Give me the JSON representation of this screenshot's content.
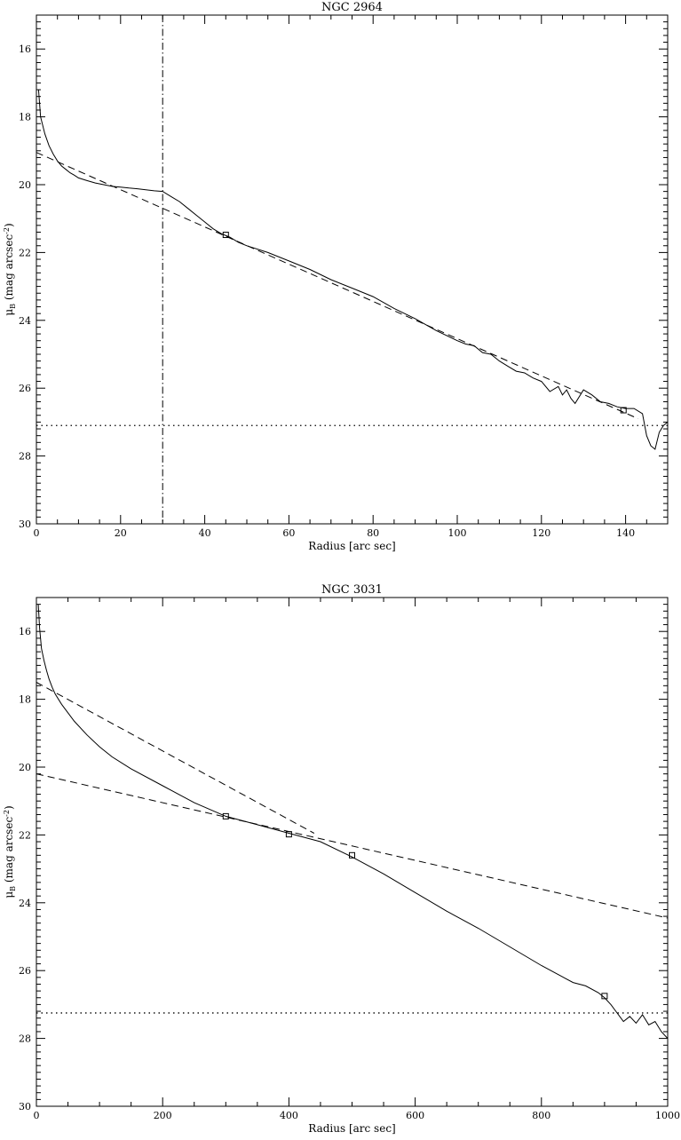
{
  "chart_data": [
    {
      "type": "line",
      "title": "NGC 2964",
      "xlabel": "Radius [arc sec]",
      "ylabel": "μ",
      "ylabel_sub": "B",
      "ylabel_rest": " (mag arcsec",
      "ylabel_sup": "-2",
      "ylabel_close": ")",
      "xlim": [
        0,
        150
      ],
      "ylim": [
        30,
        15
      ],
      "y_inverted": true,
      "xticks": [
        0,
        20,
        40,
        60,
        80,
        100,
        120,
        140
      ],
      "yticks": [
        16,
        18,
        20,
        22,
        24,
        26,
        28,
        30
      ],
      "grid": false,
      "series": [
        {
          "style": "solid",
          "x": [
            0.5,
            1,
            2,
            3,
            4,
            5,
            6,
            7,
            8,
            9,
            10,
            12,
            14,
            16,
            18,
            20,
            22,
            24,
            26,
            28,
            30,
            32,
            34,
            36,
            38,
            40,
            42,
            44,
            46,
            48,
            50,
            55,
            60,
            65,
            70,
            75,
            80,
            85,
            90,
            95,
            100,
            102,
            104,
            106,
            108,
            110,
            112,
            114,
            116,
            118,
            120,
            122,
            124,
            125,
            126,
            127,
            128,
            130,
            132,
            134,
            136,
            138,
            140,
            142,
            144,
            145,
            146,
            147,
            148,
            149,
            150
          ],
          "y": [
            17.2,
            18.0,
            18.5,
            18.85,
            19.1,
            19.3,
            19.45,
            19.55,
            19.65,
            19.72,
            19.8,
            19.88,
            19.95,
            20.0,
            20.05,
            20.07,
            20.1,
            20.12,
            20.15,
            20.18,
            20.2,
            20.35,
            20.5,
            20.7,
            20.9,
            21.1,
            21.3,
            21.45,
            21.55,
            21.7,
            21.8,
            22.0,
            22.25,
            22.5,
            22.8,
            23.05,
            23.3,
            23.65,
            23.95,
            24.3,
            24.6,
            24.7,
            24.75,
            24.95,
            25.0,
            25.2,
            25.35,
            25.5,
            25.55,
            25.7,
            25.8,
            26.1,
            25.95,
            26.2,
            26.05,
            26.3,
            26.45,
            26.05,
            26.2,
            26.4,
            26.45,
            26.55,
            26.6,
            26.6,
            26.75,
            27.4,
            27.7,
            27.8,
            27.3,
            27.1,
            27.0
          ]
        },
        {
          "style": "dashed",
          "x": [
            0,
            143
          ],
          "y": [
            19.05,
            26.9
          ]
        }
      ],
      "markers": [
        {
          "x": 45,
          "y": 21.48
        },
        {
          "x": 139.5,
          "y": 26.65
        }
      ],
      "hlines": [
        {
          "y": 27.1,
          "style": "dotted"
        }
      ],
      "vlines": [
        {
          "x": 30,
          "style": "dashdot"
        }
      ]
    },
    {
      "type": "line",
      "title": "NGC 3031",
      "xlabel": "Radius [arc sec]",
      "ylabel": "μ",
      "ylabel_sub": "B",
      "ylabel_rest": " (mag arcsec",
      "ylabel_sup": "-2",
      "ylabel_close": ")",
      "xlim": [
        0,
        1000
      ],
      "ylim": [
        30,
        15
      ],
      "y_inverted": true,
      "xticks": [
        0,
        200,
        400,
        600,
        800,
        1000
      ],
      "yticks": [
        16,
        18,
        20,
        22,
        24,
        26,
        28,
        30
      ],
      "grid": false,
      "series": [
        {
          "style": "solid",
          "x": [
            3,
            5,
            8,
            12,
            16,
            20,
            25,
            30,
            40,
            50,
            60,
            80,
            100,
            120,
            150,
            200,
            250,
            300,
            350,
            400,
            450,
            500,
            550,
            600,
            650,
            700,
            750,
            800,
            850,
            870,
            890,
            900,
            910,
            920,
            930,
            940,
            950,
            960,
            970,
            980,
            990,
            1000
          ],
          "y": [
            15.2,
            15.9,
            16.5,
            16.85,
            17.15,
            17.4,
            17.65,
            17.85,
            18.15,
            18.4,
            18.65,
            19.05,
            19.4,
            19.7,
            20.05,
            20.55,
            21.05,
            21.45,
            21.7,
            21.95,
            22.2,
            22.65,
            23.15,
            23.7,
            24.25,
            24.75,
            25.3,
            25.85,
            26.35,
            26.45,
            26.65,
            26.8,
            27.0,
            27.25,
            27.5,
            27.35,
            27.55,
            27.3,
            27.6,
            27.5,
            27.8,
            28.0
          ]
        },
        {
          "style": "dashed",
          "x": [
            0,
            440
          ],
          "y": [
            17.5,
            21.95
          ]
        },
        {
          "style": "dashed",
          "x": [
            0,
            1000
          ],
          "y": [
            20.2,
            24.45
          ]
        }
      ],
      "markers": [
        {
          "x": 300,
          "y": 21.45
        },
        {
          "x": 400,
          "y": 21.98
        },
        {
          "x": 500,
          "y": 22.6
        },
        {
          "x": 900,
          "y": 26.75
        }
      ],
      "hlines": [
        {
          "y": 27.25,
          "style": "dotted"
        }
      ],
      "vlines": []
    }
  ]
}
